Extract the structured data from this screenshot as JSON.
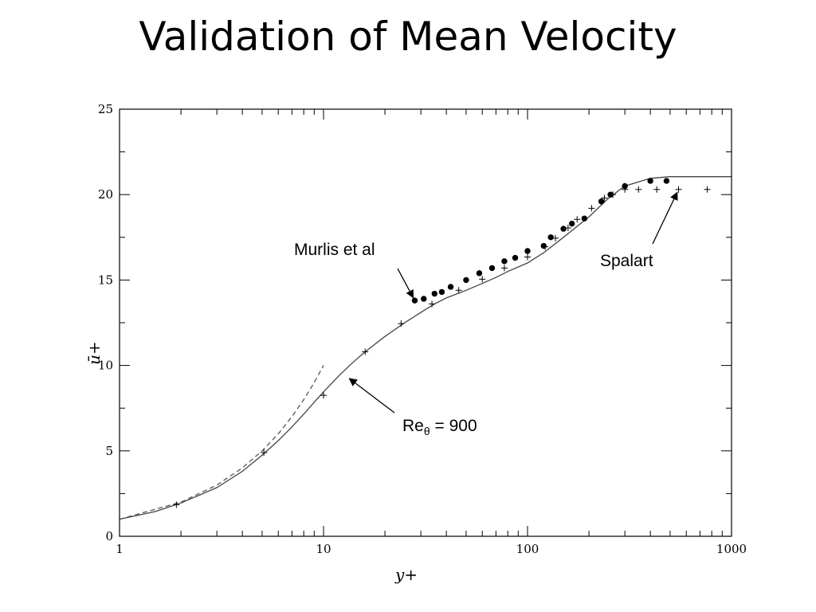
{
  "slide": {
    "title": "Validation of Mean Velocity"
  },
  "chart_data": {
    "type": "line",
    "title": "Validation of Mean Velocity",
    "xlabel": "y+",
    "ylabel": "ū+",
    "x_scale": "log",
    "xlim": [
      1,
      1000
    ],
    "ylim": [
      0,
      25
    ],
    "x_ticks": [
      {
        "value": 1,
        "label": "1"
      },
      {
        "value": 10,
        "label": "10"
      },
      {
        "value": 100,
        "label": "100"
      },
      {
        "value": 1000,
        "label": "1000"
      }
    ],
    "y_ticks": [
      {
        "value": 0,
        "label": "0"
      },
      {
        "value": 5,
        "label": "5"
      },
      {
        "value": 10,
        "label": "10"
      },
      {
        "value": 15,
        "label": "15"
      },
      {
        "value": 20,
        "label": "20"
      },
      {
        "value": 25,
        "label": "25"
      }
    ],
    "grid": false,
    "series": [
      {
        "name": "Re_theta = 900",
        "style": "solid-line",
        "color": "#444444",
        "points": [
          [
            1,
            1
          ],
          [
            1.5,
            1.45
          ],
          [
            2,
            1.95
          ],
          [
            3,
            2.85
          ],
          [
            4,
            3.8
          ],
          [
            5,
            4.75
          ],
          [
            6,
            5.6
          ],
          [
            7,
            6.4
          ],
          [
            8,
            7.15
          ],
          [
            9,
            7.85
          ],
          [
            10,
            8.45
          ],
          [
            12,
            9.45
          ],
          [
            14,
            10.2
          ],
          [
            16,
            10.8
          ],
          [
            20,
            11.7
          ],
          [
            25,
            12.5
          ],
          [
            30,
            13.1
          ],
          [
            35,
            13.6
          ],
          [
            40,
            13.95
          ],
          [
            50,
            14.4
          ],
          [
            60,
            14.8
          ],
          [
            70,
            15.15
          ],
          [
            80,
            15.5
          ],
          [
            100,
            16.0
          ],
          [
            120,
            16.6
          ],
          [
            150,
            17.5
          ],
          [
            200,
            18.7
          ],
          [
            250,
            19.8
          ],
          [
            300,
            20.5
          ],
          [
            400,
            20.95
          ],
          [
            500,
            21.05
          ],
          [
            600,
            21.05
          ],
          [
            800,
            21.05
          ],
          [
            1000,
            21.05
          ]
        ]
      },
      {
        "name": "u+ = y+",
        "style": "dashed-line",
        "color": "#555555",
        "points": [
          [
            1,
            1
          ],
          [
            2,
            2
          ],
          [
            3,
            3
          ],
          [
            4,
            4
          ],
          [
            5,
            5
          ],
          [
            6,
            6
          ],
          [
            7,
            7
          ],
          [
            8,
            8
          ],
          [
            9,
            9
          ],
          [
            10,
            10
          ]
        ]
      },
      {
        "name": "Murlis et al",
        "style": "filled-circles",
        "color": "#000000",
        "points": [
          [
            28,
            13.8
          ],
          [
            31,
            13.9
          ],
          [
            35,
            14.2
          ],
          [
            38,
            14.3
          ],
          [
            42,
            14.6
          ],
          [
            50,
            15.0
          ],
          [
            58,
            15.4
          ],
          [
            67,
            15.7
          ],
          [
            77,
            16.1
          ],
          [
            87,
            16.3
          ],
          [
            100,
            16.7
          ],
          [
            120,
            17.0
          ],
          [
            130,
            17.5
          ],
          [
            150,
            18.0
          ],
          [
            165,
            18.3
          ],
          [
            190,
            18.6
          ],
          [
            230,
            19.6
          ],
          [
            255,
            20.0
          ],
          [
            300,
            20.5
          ],
          [
            400,
            20.8
          ],
          [
            480,
            20.8
          ]
        ]
      },
      {
        "name": "Spalart",
        "style": "plus-markers",
        "color": "#000000",
        "points": [
          [
            1.9,
            1.85
          ],
          [
            5.1,
            4.9
          ],
          [
            10,
            8.25
          ],
          [
            16,
            10.8
          ],
          [
            24,
            12.45
          ],
          [
            34,
            13.6
          ],
          [
            46,
            14.4
          ],
          [
            60,
            15.05
          ],
          [
            77,
            15.7
          ],
          [
            100,
            16.35
          ],
          [
            122,
            16.95
          ],
          [
            137,
            17.45
          ],
          [
            158,
            18.05
          ],
          [
            175,
            18.55
          ],
          [
            206,
            19.2
          ],
          [
            238,
            19.8
          ],
          [
            262,
            20.0
          ],
          [
            300,
            20.3
          ],
          [
            350,
            20.3
          ],
          [
            430,
            20.3
          ],
          [
            550,
            20.3
          ],
          [
            760,
            20.3
          ]
        ]
      }
    ],
    "annotations": [
      {
        "id": "murlis",
        "text": "Murlis et al",
        "target": [
          28,
          13.8
        ]
      },
      {
        "id": "spalart",
        "text": "Spalart",
        "target": [
          550,
          20.3
        ]
      },
      {
        "id": "re",
        "text": "Re",
        "subscript": "θ",
        "suffix": " = 900",
        "target": [
          13,
          9.35
        ]
      }
    ]
  }
}
